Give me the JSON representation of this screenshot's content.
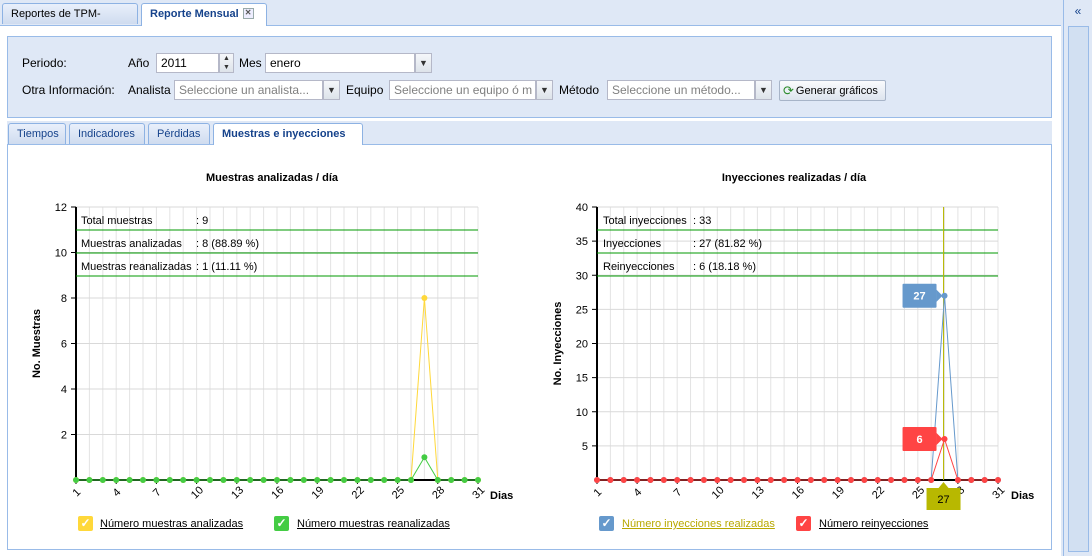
{
  "tabs": [
    {
      "label": "Reportes de TPM-QLabs",
      "active": false
    },
    {
      "label": "Reporte Mensual",
      "active": true,
      "closable": true
    }
  ],
  "filters": {
    "periodo_label": "Periodo:",
    "anio_label": "Año",
    "anio_value": "2011",
    "mes_label": "Mes",
    "mes_value": "enero",
    "otra_label": "Otra Información:",
    "analista_label": "Analista",
    "analista_placeholder": "Seleccione un analista...",
    "equipo_label": "Equipo",
    "equipo_placeholder": "Seleccione un equipo ó m",
    "metodo_label": "Método",
    "metodo_placeholder": "Seleccione un método...",
    "generate_label": "Generar gráficos"
  },
  "inner_tabs": [
    {
      "label": "Tiempos",
      "active": false
    },
    {
      "label": "Indicadores",
      "active": false
    },
    {
      "label": "Pérdidas",
      "active": false
    },
    {
      "label": "Muestras e inyecciones",
      "active": true
    }
  ],
  "colors": {
    "yellow": "#ffd83a",
    "green": "#44cc44",
    "blue": "#6699cc",
    "red": "#ff4444",
    "grid_green": "#009900",
    "olive": "#b8b800"
  },
  "chart_data": [
    {
      "type": "line",
      "title": "Muestras analizadas / día",
      "xlabel": "Dias",
      "ylabel": "No. Muestras",
      "xlim": [
        1,
        31
      ],
      "ylim": [
        0,
        12
      ],
      "xticks": [
        1,
        4,
        7,
        10,
        13,
        16,
        19,
        22,
        25,
        28,
        31
      ],
      "yticks": [
        2,
        4,
        6,
        8,
        10,
        12
      ],
      "x": [
        1,
        2,
        3,
        4,
        5,
        6,
        7,
        8,
        9,
        10,
        11,
        12,
        13,
        14,
        15,
        16,
        17,
        18,
        19,
        20,
        21,
        22,
        23,
        24,
        25,
        26,
        27,
        28,
        29,
        30,
        31
      ],
      "series": [
        {
          "name": "Número muestras analizadas",
          "color": "#ffd83a",
          "values": [
            0,
            0,
            0,
            0,
            0,
            0,
            0,
            0,
            0,
            0,
            0,
            0,
            0,
            0,
            0,
            0,
            0,
            0,
            0,
            0,
            0,
            0,
            0,
            0,
            0,
            0,
            8,
            0,
            0,
            0,
            0
          ]
        },
        {
          "name": "Número muestras reanalizadas",
          "color": "#44cc44",
          "values": [
            0,
            0,
            0,
            0,
            0,
            0,
            0,
            0,
            0,
            0,
            0,
            0,
            0,
            0,
            0,
            0,
            0,
            0,
            0,
            0,
            0,
            0,
            0,
            0,
            0,
            0,
            1,
            0,
            0,
            0,
            0
          ]
        }
      ],
      "reference_lines": [
        {
          "value": 9,
          "label": "Total muestras",
          "text": ": 9"
        },
        {
          "value": 8,
          "label": "Muestras analizadas",
          "text": ": 8 (88.89 %)"
        },
        {
          "value": 1,
          "label": "Muestras reanalizadas",
          "text": ": 1 (11.11 %)"
        }
      ]
    },
    {
      "type": "line",
      "title": "Inyecciones realizadas / día",
      "xlabel": "Dias",
      "ylabel": "No. Inyecciones",
      "xlim": [
        1,
        31
      ],
      "ylim": [
        0,
        40
      ],
      "xticks": [
        1,
        4,
        7,
        10,
        13,
        16,
        19,
        22,
        25,
        28,
        31
      ],
      "yticks": [
        5,
        10,
        15,
        20,
        25,
        30,
        35,
        40
      ],
      "x": [
        1,
        2,
        3,
        4,
        5,
        6,
        7,
        8,
        9,
        10,
        11,
        12,
        13,
        14,
        15,
        16,
        17,
        18,
        19,
        20,
        21,
        22,
        23,
        24,
        25,
        26,
        27,
        28,
        29,
        30,
        31
      ],
      "series": [
        {
          "name": "Número inyecciones realizadas",
          "color": "#6699cc",
          "values": [
            0,
            0,
            0,
            0,
            0,
            0,
            0,
            0,
            0,
            0,
            0,
            0,
            0,
            0,
            0,
            0,
            0,
            0,
            0,
            0,
            0,
            0,
            0,
            0,
            0,
            0,
            27,
            0,
            0,
            0,
            0
          ]
        },
        {
          "name": "Número reinyecciones",
          "color": "#ff4444",
          "values": [
            0,
            0,
            0,
            0,
            0,
            0,
            0,
            0,
            0,
            0,
            0,
            0,
            0,
            0,
            0,
            0,
            0,
            0,
            0,
            0,
            0,
            0,
            0,
            0,
            0,
            0,
            6,
            0,
            0,
            0,
            0
          ]
        }
      ],
      "reference_lines": [
        {
          "value": 33,
          "label": "Total inyecciones",
          "text": ": 33"
        },
        {
          "value": 27,
          "label": "Inyecciones",
          "text": ": 27 (81.82 %)"
        },
        {
          "value": 6,
          "label": "Reinyecciones",
          "text": ": 6 (18.18 %)"
        }
      ],
      "tooltips": [
        {
          "series": "Número inyecciones realizadas",
          "value": "27"
        },
        {
          "series": "Número reinyecciones",
          "value": "6"
        }
      ],
      "crosshair_x": 27,
      "crosshair_label": "27"
    }
  ]
}
